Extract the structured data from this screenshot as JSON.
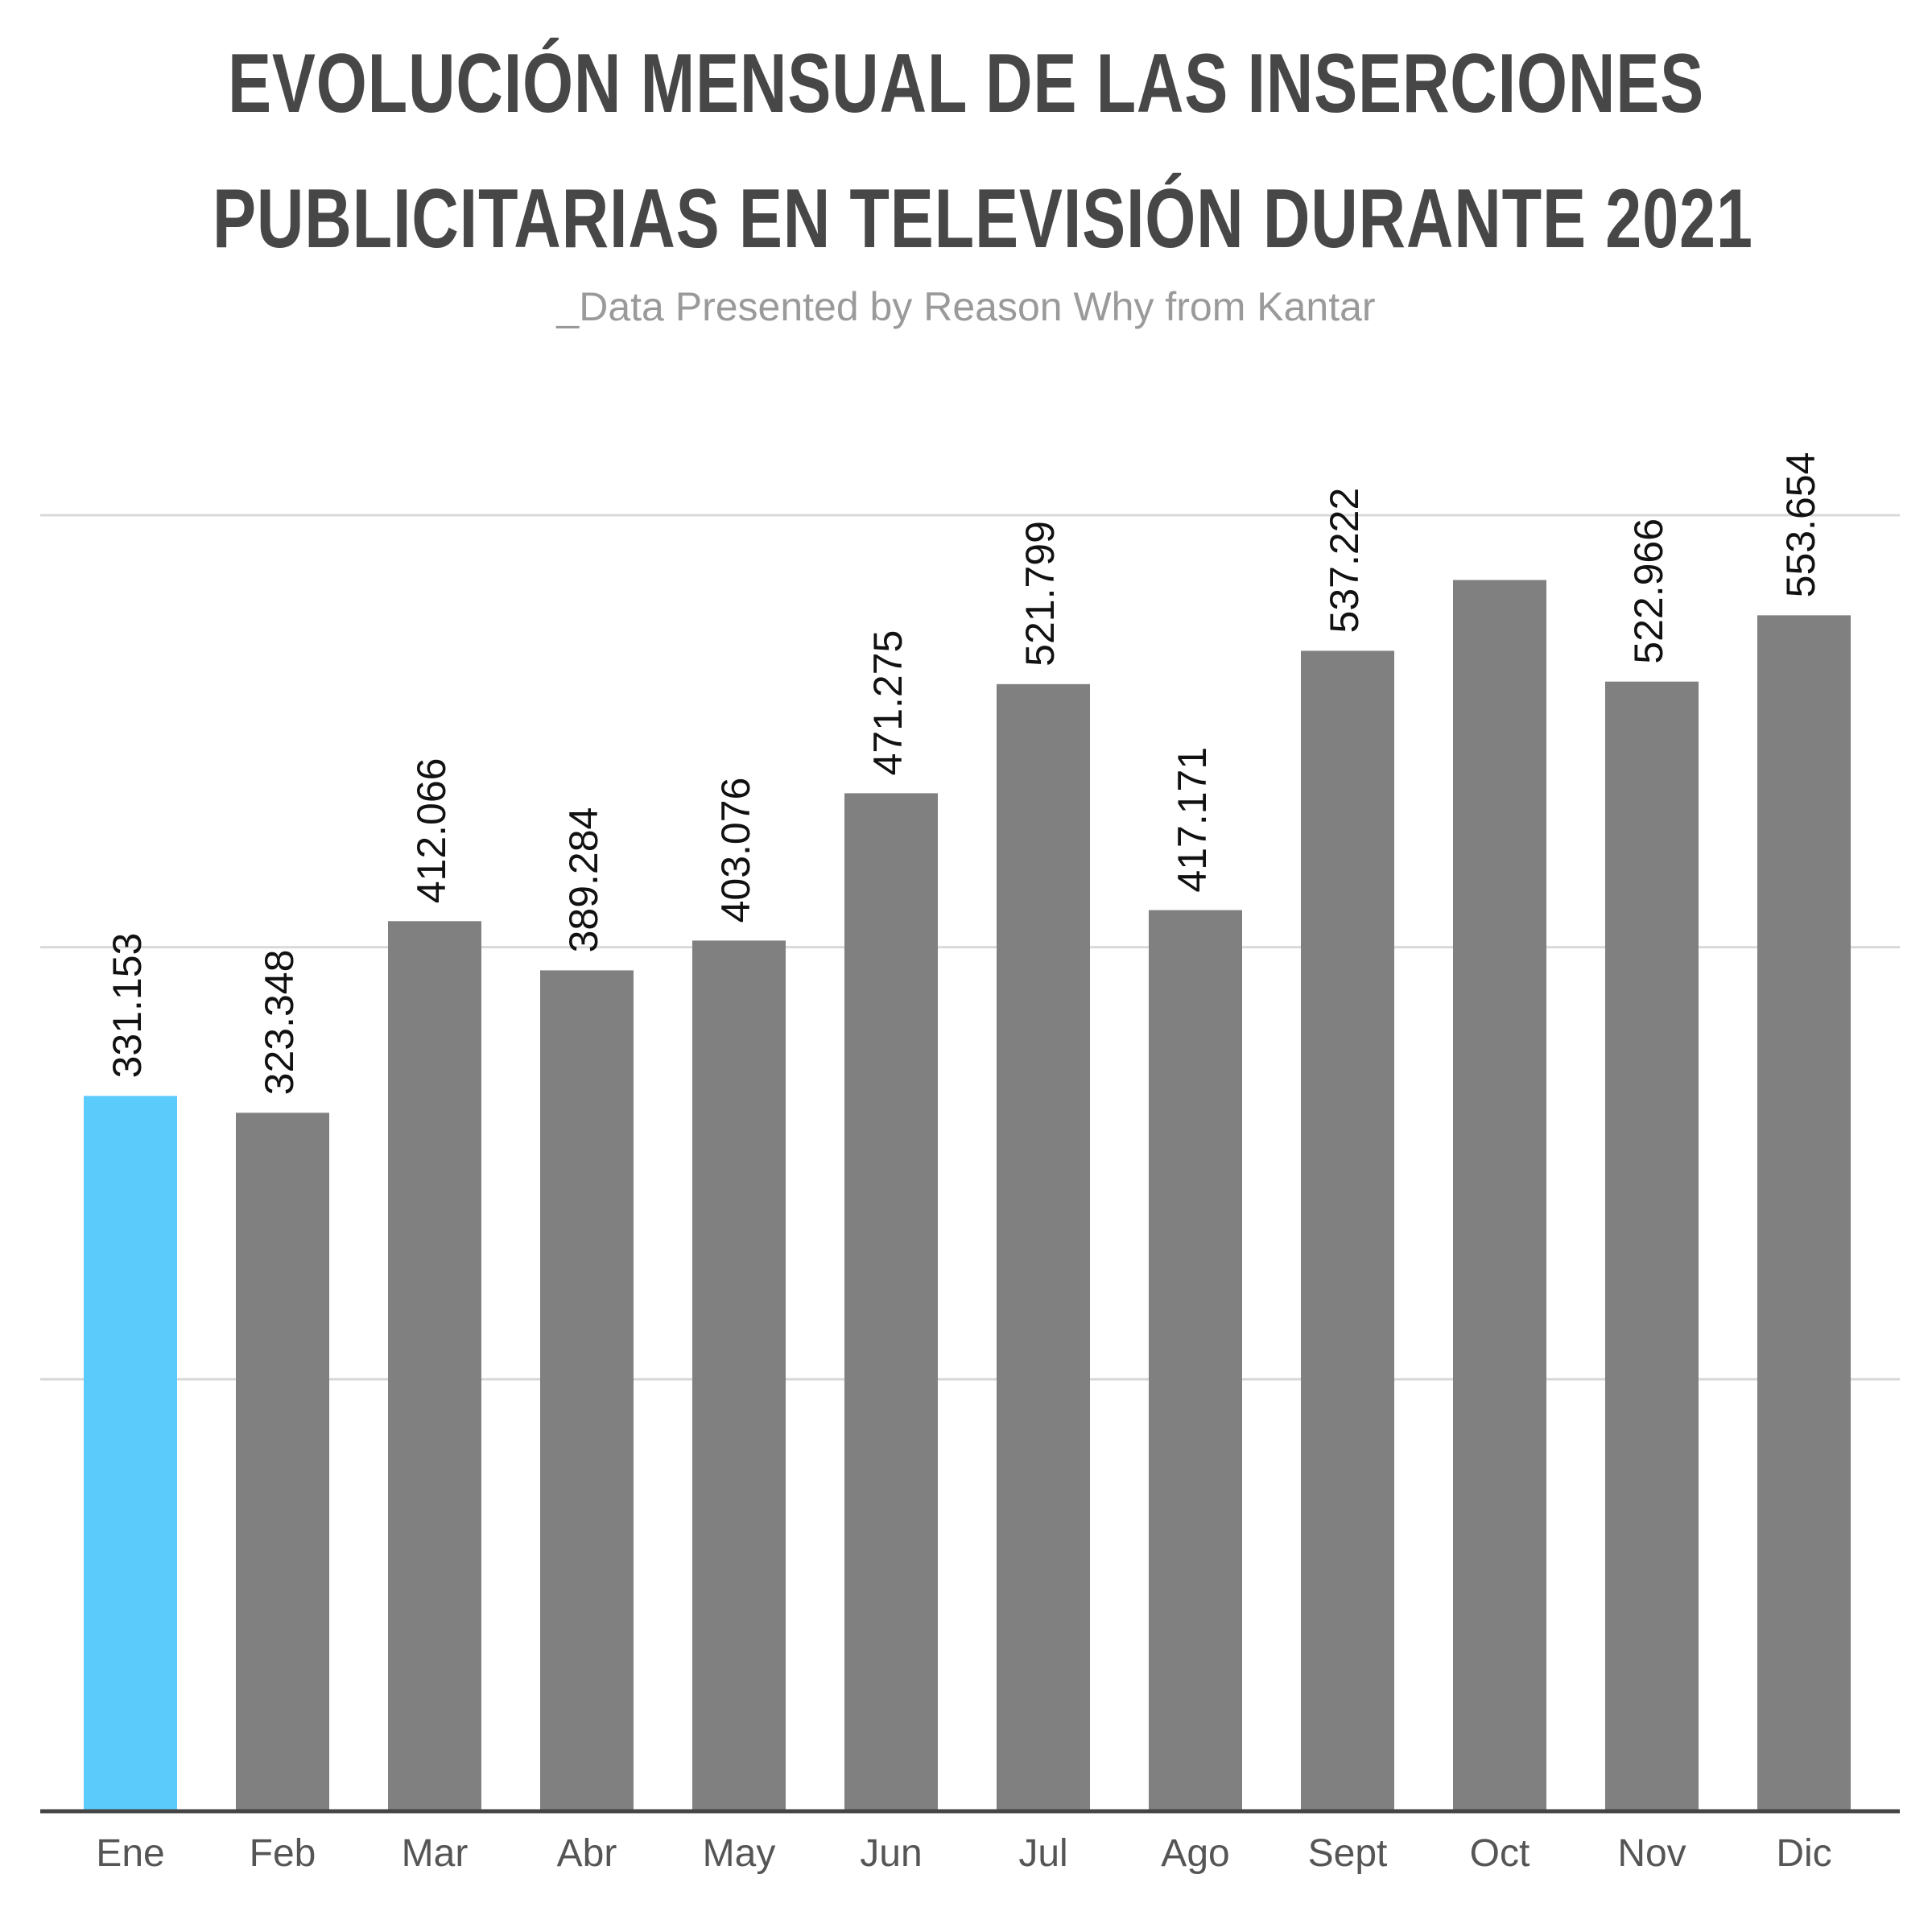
{
  "chart_data": {
    "type": "bar",
    "title_lines": [
      "EVOLUCIÓN MENSUAL DE LAS INSERCIONES",
      "PUBLICITARIAS EN TELEVISIÓN DURANTE 2021"
    ],
    "subtitle": "_Data Presented by Reason Why from Kantar",
    "categories": [
      "Ene",
      "Feb",
      "Mar",
      "Abr",
      "May",
      "Jun",
      "Jul",
      "Ago",
      "Sept",
      "Oct",
      "Nov",
      "Dic"
    ],
    "values": [
      331153,
      323348,
      412066,
      389284,
      403076,
      471275,
      521799,
      417171,
      537222,
      570000,
      522966,
      553654
    ],
    "labels": [
      "331.153",
      "323.348",
      "412.066",
      "389.284",
      "403.076",
      "471.275",
      "521.799",
      "417.171",
      "537.222",
      "",
      "522.966",
      "553.654"
    ],
    "highlight_index": 0,
    "colors": {
      "bar": "#808080",
      "highlight": "#5bcbfc",
      "grid": "#d9d9d9",
      "axis": "#444444"
    },
    "ylim": [
      0,
      600000
    ],
    "gridlines": [
      200000,
      400000,
      600000
    ],
    "grid": true,
    "legend": "none"
  }
}
